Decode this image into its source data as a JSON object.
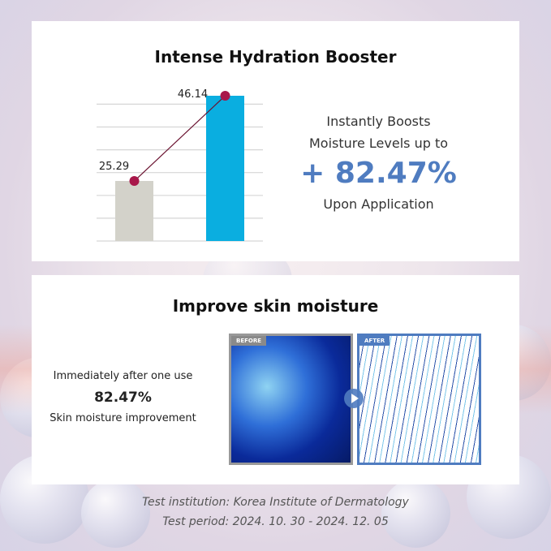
{
  "section1": {
    "title": "Intense Hydration Booster",
    "line1": "Instantly Boosts",
    "line2": "Moisture Levels up to",
    "highlight": "+ 82.47%",
    "line3": "Upon Application"
  },
  "section2": {
    "title": "Improve skin moisture",
    "line1": "Immediately after one use",
    "value": "82.47%",
    "line2": "Skin moisture improvement",
    "before_label": "BEFORE",
    "after_label": "AFTER"
  },
  "footer": {
    "institution": "Test institution: Korea Institute of Dermatology",
    "period": "Test period: 2024. 10. 30 - 2024. 12. 05"
  },
  "chart_data": {
    "type": "bar",
    "categories": [
      "",
      ""
    ],
    "values": [
      25.29,
      46.14
    ],
    "data_labels": [
      "25.29",
      "46.14"
    ],
    "bar_colors": [
      "#d3d2ca",
      "#0aaee0"
    ],
    "overlay_line": {
      "color": "#6a1230",
      "marker_color": "#a8174a"
    },
    "ylim": [
      10.6,
      46.14
    ],
    "grid": true,
    "title": "",
    "xlabel": "",
    "ylabel": ""
  }
}
